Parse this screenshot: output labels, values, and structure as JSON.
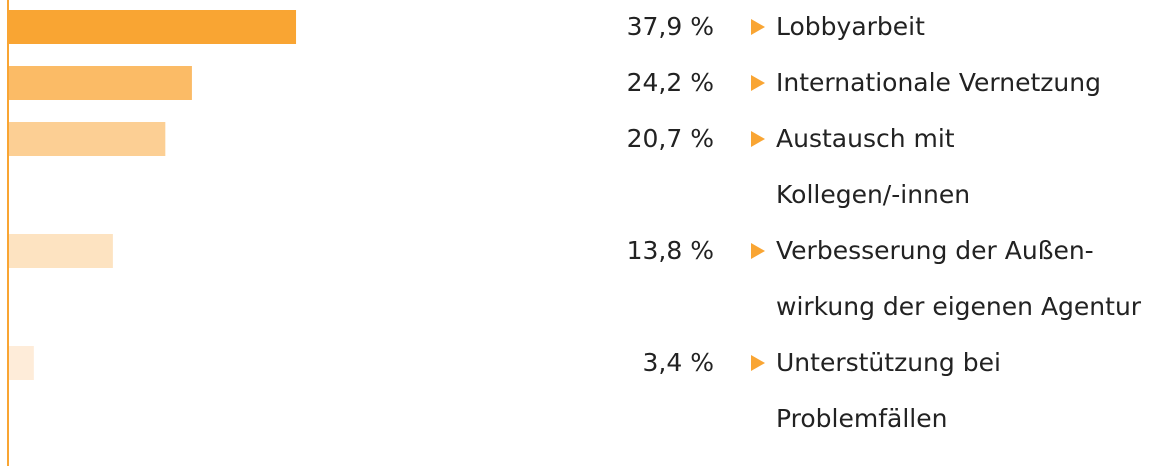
{
  "chart_data": {
    "type": "hbar",
    "categories": [
      "Lobbyarbeit",
      "Internationale Vernetzung",
      "Austausch mit\nKollegen/-innen",
      "Verbesserung der Außen-\nwirkung der eigenen Agentur",
      "Unterstützung bei\nProblemfällen"
    ],
    "values": [
      37.9,
      24.2,
      20.7,
      13.8,
      3.4
    ],
    "value_labels": [
      "37,9 %",
      "24,2 %",
      "20,7 %",
      "13,8 %",
      "3,4 %"
    ],
    "colors": [
      "#f9a533",
      "#fbbb66",
      "#fccf94",
      "#fde3c1",
      "#feecd9"
    ],
    "axis_color": "#f9a533"
  }
}
